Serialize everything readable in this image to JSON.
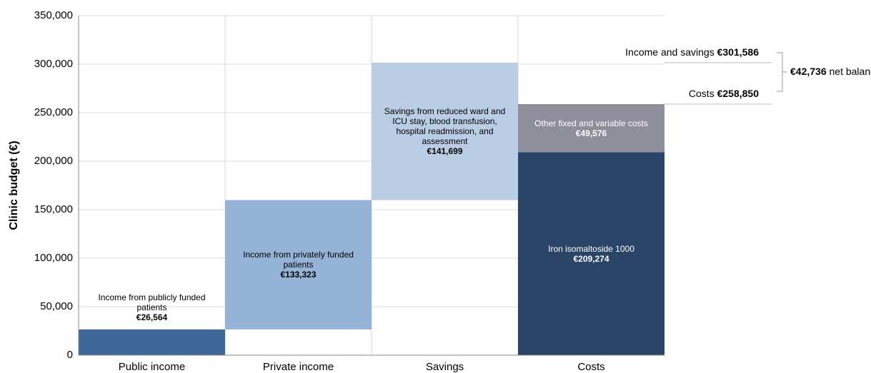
{
  "chart_data": {
    "type": "waterfall",
    "ylabel": "Clinic budget (€)",
    "categories": [
      "Public income",
      "Private income",
      "Savings",
      "Costs"
    ],
    "series": [
      {
        "name": "Income from publicly funded patients",
        "color": "#3f6899",
        "values": [
          26564,
          null,
          null,
          null
        ],
        "value_labels": [
          "€26,564",
          null,
          null,
          null
        ]
      },
      {
        "name": "Income from privately funded patients",
        "color": "#95b3d7",
        "values": [
          null,
          133323,
          null,
          null
        ],
        "value_labels": [
          null,
          "€133,323",
          null,
          null
        ]
      },
      {
        "name": "Savings from reduced ward and ICU stay, blood transfusion, hospital readmission, and assessment",
        "color": "#b9cde5",
        "values": [
          null,
          null,
          141699,
          null
        ],
        "value_labels": [
          null,
          null,
          "€141,699",
          null
        ]
      },
      {
        "name": "Iron isomaltoside 1000",
        "color": "#2a4568",
        "values": [
          null,
          null,
          null,
          209274
        ],
        "value_labels": [
          null,
          null,
          null,
          "€209,274"
        ]
      },
      {
        "name": "Other fixed and variable costs",
        "color": "#8f8f9b",
        "values": [
          null,
          null,
          null,
          49576
        ],
        "value_labels": [
          null,
          null,
          null,
          "€49,576"
        ]
      }
    ],
    "annotations": [
      {
        "label": "Income and savings",
        "value": 301586,
        "value_label": "€301,586"
      },
      {
        "label": "Costs",
        "value": 258850,
        "value_label": "€258,850"
      }
    ],
    "net_balance": {
      "label": "net balance",
      "value": 42736,
      "value_label": "€42,736"
    },
    "ylim": [
      0,
      350000
    ],
    "yticks": [
      0,
      {
        "value": 50000,
        "label": "50,000"
      },
      {
        "value": 100000,
        "label": "100,000"
      },
      {
        "value": 150000,
        "label": "150,000"
      },
      {
        "value": 200000,
        "label": "200,000"
      },
      {
        "value": 250000,
        "label": "250,000"
      },
      {
        "value": 300000,
        "label": "300,000"
      },
      {
        "value": 350000,
        "label": "350,000"
      }
    ],
    "grid": true
  }
}
